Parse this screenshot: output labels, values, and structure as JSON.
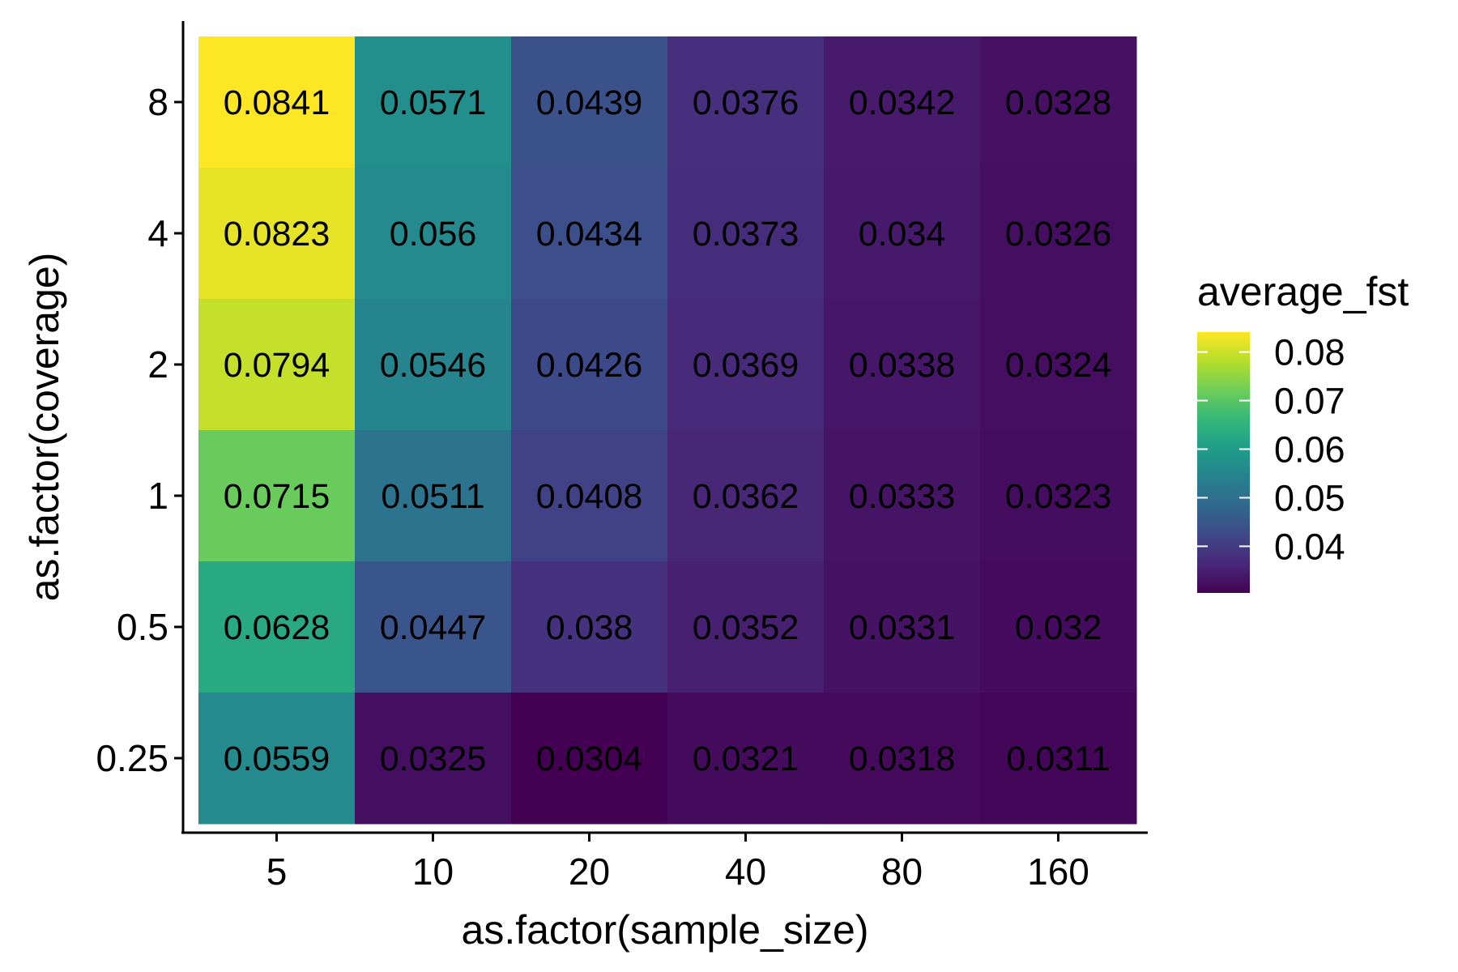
{
  "chart_data": {
    "type": "heatmap",
    "xlabel": "as.factor(sample_size)",
    "ylabel": "as.factor(coverage)",
    "x_categories": [
      "5",
      "10",
      "20",
      "40",
      "80",
      "160"
    ],
    "y_categories": [
      "8",
      "4",
      "2",
      "1",
      "0.5",
      "0.25"
    ],
    "values": [
      [
        0.0841,
        0.0571,
        0.0439,
        0.0376,
        0.0342,
        0.0328
      ],
      [
        0.0823,
        0.056,
        0.0434,
        0.0373,
        0.034,
        0.0326
      ],
      [
        0.0794,
        0.0546,
        0.0426,
        0.0369,
        0.0338,
        0.0324
      ],
      [
        0.0715,
        0.0511,
        0.0408,
        0.0362,
        0.0333,
        0.0323
      ],
      [
        0.0628,
        0.0447,
        0.038,
        0.0352,
        0.0331,
        0.032
      ],
      [
        0.0559,
        0.0325,
        0.0304,
        0.0321,
        0.0318,
        0.0311
      ]
    ],
    "labels": [
      [
        "0.0841",
        "0.0571",
        "0.0439",
        "0.0376",
        "0.0342",
        "0.0328"
      ],
      [
        "0.0823",
        "0.056",
        "0.0434",
        "0.0373",
        "0.034",
        "0.0326"
      ],
      [
        "0.0794",
        "0.0546",
        "0.0426",
        "0.0369",
        "0.0338",
        "0.0324"
      ],
      [
        "0.0715",
        "0.0511",
        "0.0408",
        "0.0362",
        "0.0333",
        "0.0323"
      ],
      [
        "0.0628",
        "0.0447",
        "0.038",
        "0.0352",
        "0.0331",
        "0.032"
      ],
      [
        "0.0559",
        "0.0325",
        "0.0304",
        "0.0321",
        "0.0318",
        "0.0311"
      ]
    ],
    "legend": {
      "title": "average_fst",
      "breaks": [
        0.08,
        0.07,
        0.06,
        0.05,
        0.04
      ],
      "break_labels": [
        "0.08",
        "0.07",
        "0.06",
        "0.05",
        "0.04"
      ],
      "min": 0.0304,
      "max": 0.0841,
      "placement": "right"
    },
    "colormap": "viridis",
    "colors": [
      "#440154",
      "#482878",
      "#3e4989",
      "#31688e",
      "#26828e",
      "#1f9e89",
      "#35b779",
      "#6ece58",
      "#b5de2b",
      "#fde725"
    ]
  }
}
